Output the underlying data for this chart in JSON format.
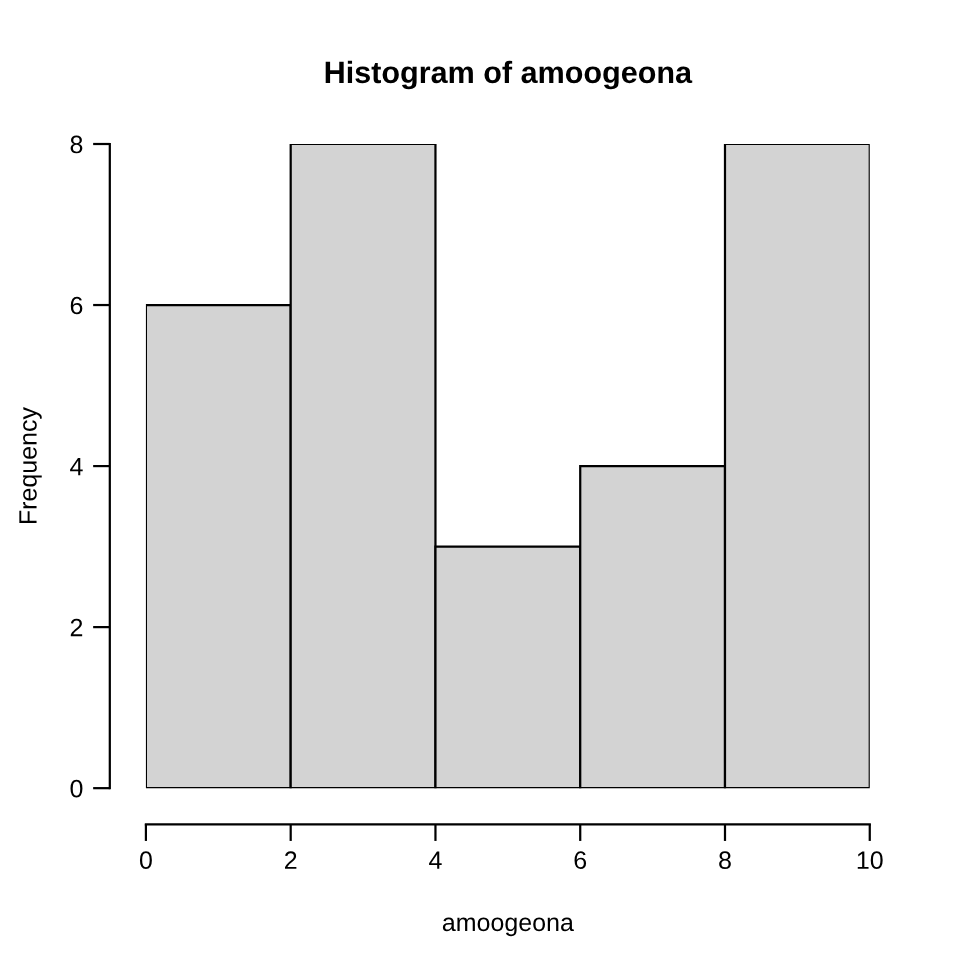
{
  "chart_data": {
    "type": "histogram",
    "title": "Histogram of amoogeona",
    "xlabel": "amoogeona",
    "ylabel": "Frequency",
    "bins": [
      0,
      2,
      4,
      6,
      8,
      10
    ],
    "values": [
      6,
      8,
      3,
      4,
      8
    ],
    "color": "#d3d3d3",
    "xlim": [
      0,
      10
    ],
    "ylim": [
      0,
      8
    ],
    "xticks": [
      0,
      2,
      4,
      6,
      8,
      10
    ],
    "yticks": [
      0,
      2,
      4,
      6,
      8
    ],
    "grid": false,
    "legend": false
  }
}
